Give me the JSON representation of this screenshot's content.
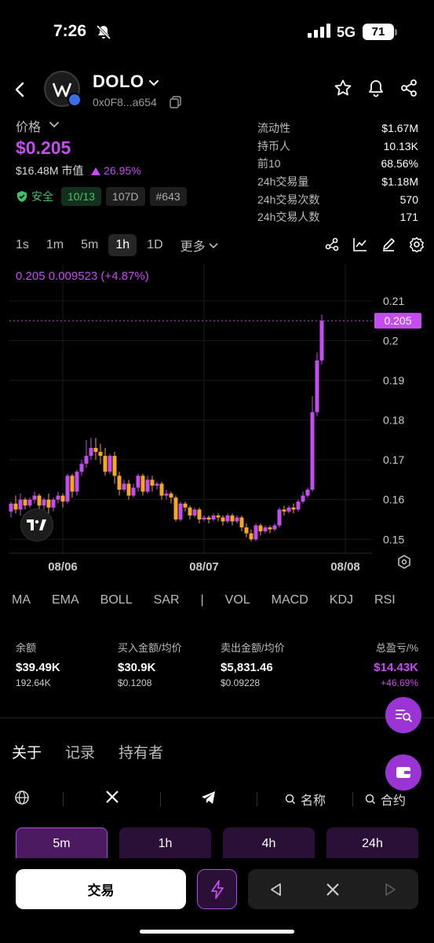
{
  "status_bar": {
    "time": "7:26",
    "network": "5G",
    "battery": "71"
  },
  "token": {
    "name": "DOLO",
    "address": "0x0F8...a654"
  },
  "price": {
    "label": "价格",
    "value": "$0.205",
    "market_cap": "$16.48M 市值",
    "change": "26.95%",
    "safety_label": "安全",
    "score": "10/13",
    "age": "107D",
    "rank": "#643"
  },
  "stats": [
    {
      "key": "流动性",
      "value": "$1.67M"
    },
    {
      "key": "持币人",
      "value": "10.13K"
    },
    {
      "key": "前10",
      "value": "68.56%"
    },
    {
      "key": "24h交易量",
      "value": "$1.18M"
    },
    {
      "key": "24h交易次数",
      "value": "570"
    },
    {
      "key": "24h交易人数",
      "value": "171"
    }
  ],
  "intervals": [
    "1s",
    "1m",
    "5m",
    "1h",
    "1D",
    "更多"
  ],
  "active_interval": "1h",
  "chart_data": {
    "type": "candlestick",
    "ohlc_label": "0.205  0.009523 (+4.87%)",
    "current_price_label": "0.205",
    "y_ticks": [
      "0.21",
      "0.2",
      "0.19",
      "0.18",
      "0.17",
      "0.16",
      "0.15"
    ],
    "ylim": [
      0.1465,
      0.2165
    ],
    "x_ticks": [
      "08/06",
      "08/07",
      "08/08"
    ],
    "x_tick_index": [
      11,
      41,
      71
    ],
    "grid": true,
    "up_color": "#c54cf0",
    "down_color": "#f5a623",
    "candles": [
      [
        0.157,
        0.159,
        0.1555,
        0.1595
      ],
      [
        0.159,
        0.1575,
        0.1565,
        0.161
      ],
      [
        0.1575,
        0.16,
        0.156,
        0.1615
      ],
      [
        0.16,
        0.1585,
        0.1575,
        0.1605
      ],
      [
        0.1585,
        0.16,
        0.158,
        0.1605
      ],
      [
        0.16,
        0.161,
        0.159,
        0.162
      ],
      [
        0.161,
        0.1585,
        0.1565,
        0.1615
      ],
      [
        0.1585,
        0.16,
        0.1575,
        0.1605
      ],
      [
        0.16,
        0.158,
        0.1565,
        0.1615
      ],
      [
        0.158,
        0.16,
        0.157,
        0.1605
      ],
      [
        0.16,
        0.161,
        0.159,
        0.162
      ],
      [
        0.161,
        0.1595,
        0.158,
        0.1615
      ],
      [
        0.1595,
        0.166,
        0.159,
        0.1665
      ],
      [
        0.166,
        0.162,
        0.1605,
        0.1665
      ],
      [
        0.162,
        0.167,
        0.161,
        0.1675
      ],
      [
        0.167,
        0.169,
        0.166,
        0.17
      ],
      [
        0.169,
        0.171,
        0.168,
        0.175
      ],
      [
        0.171,
        0.173,
        0.17,
        0.1755
      ],
      [
        0.173,
        0.172,
        0.17,
        0.1755
      ],
      [
        0.172,
        0.171,
        0.169,
        0.174
      ],
      [
        0.171,
        0.167,
        0.166,
        0.173
      ],
      [
        0.167,
        0.171,
        0.1665,
        0.1715
      ],
      [
        0.171,
        0.166,
        0.164,
        0.172
      ],
      [
        0.166,
        0.1625,
        0.161,
        0.167
      ],
      [
        0.1625,
        0.164,
        0.162,
        0.165
      ],
      [
        0.164,
        0.161,
        0.16,
        0.165
      ],
      [
        0.161,
        0.163,
        0.1605,
        0.164
      ],
      [
        0.163,
        0.166,
        0.162,
        0.1665
      ],
      [
        0.166,
        0.162,
        0.161,
        0.1665
      ],
      [
        0.162,
        0.165,
        0.1615,
        0.166
      ],
      [
        0.165,
        0.1635,
        0.162,
        0.166
      ],
      [
        0.1635,
        0.164,
        0.1625,
        0.1645
      ],
      [
        0.164,
        0.161,
        0.16,
        0.1645
      ],
      [
        0.161,
        0.1615,
        0.16,
        0.1625
      ],
      [
        0.1615,
        0.1605,
        0.159,
        0.162
      ],
      [
        0.1605,
        0.155,
        0.1545,
        0.161
      ],
      [
        0.155,
        0.159,
        0.1545,
        0.1595
      ],
      [
        0.159,
        0.158,
        0.157,
        0.1595
      ],
      [
        0.158,
        0.156,
        0.155,
        0.1585
      ],
      [
        0.156,
        0.1575,
        0.1555,
        0.158
      ],
      [
        0.1575,
        0.155,
        0.154,
        0.158
      ],
      [
        0.155,
        0.1555,
        0.1545,
        0.156
      ],
      [
        0.1555,
        0.155,
        0.154,
        0.156
      ],
      [
        0.155,
        0.156,
        0.1545,
        0.1565
      ],
      [
        0.156,
        0.1555,
        0.1545,
        0.1565
      ],
      [
        0.1555,
        0.1545,
        0.1535,
        0.156
      ],
      [
        0.1545,
        0.156,
        0.154,
        0.1565
      ],
      [
        0.156,
        0.1545,
        0.1535,
        0.1565
      ],
      [
        0.1545,
        0.1555,
        0.154,
        0.156
      ],
      [
        0.1555,
        0.153,
        0.152,
        0.156
      ],
      [
        0.153,
        0.1515,
        0.1505,
        0.154
      ],
      [
        0.1515,
        0.15,
        0.1495,
        0.1525
      ],
      [
        0.15,
        0.1535,
        0.1495,
        0.154
      ],
      [
        0.1535,
        0.152,
        0.151,
        0.154
      ],
      [
        0.152,
        0.153,
        0.1515,
        0.1535
      ],
      [
        0.153,
        0.1525,
        0.1515,
        0.1535
      ],
      [
        0.1525,
        0.1535,
        0.152,
        0.154
      ],
      [
        0.1535,
        0.1575,
        0.153,
        0.158
      ],
      [
        0.1575,
        0.157,
        0.156,
        0.1585
      ],
      [
        0.157,
        0.158,
        0.1565,
        0.1585
      ],
      [
        0.158,
        0.1575,
        0.1565,
        0.159
      ],
      [
        0.1575,
        0.1595,
        0.157,
        0.16
      ],
      [
        0.1595,
        0.161,
        0.159,
        0.162
      ],
      [
        0.161,
        0.1625,
        0.1605,
        0.163
      ],
      [
        0.1625,
        0.182,
        0.162,
        0.186
      ],
      [
        0.182,
        0.195,
        0.181,
        0.197
      ],
      [
        0.195,
        0.205,
        0.194,
        0.2065
      ]
    ]
  },
  "indicators": [
    "MA",
    "EMA",
    "BOLL",
    "SAR",
    "|",
    "VOL",
    "MACD",
    "KDJ",
    "RSI"
  ],
  "balances": {
    "balance": {
      "label": "余额",
      "value": "$39.49K",
      "sub": "192.64K"
    },
    "buy": {
      "label": "买入金额/均价",
      "value": "$30.9K",
      "sub": "$0.1208"
    },
    "sell": {
      "label": "卖出金额/均价",
      "value": "$5,831.46",
      "sub": "$0.09228"
    },
    "pnl": {
      "label": "总盈亏/%",
      "value": "$14.43K",
      "sub": "+46.69%"
    }
  },
  "tabs": [
    "关于",
    "记录",
    "持有者"
  ],
  "links": {
    "search_name": "名称",
    "search_contract": "合约"
  },
  "time_tabs": [
    "5m",
    "1h",
    "4h",
    "24h"
  ],
  "bottom": {
    "trade_label": "交易"
  },
  "colors": {
    "accent": "#c54cf0",
    "down": "#f5a623",
    "safe": "#3cc468"
  }
}
